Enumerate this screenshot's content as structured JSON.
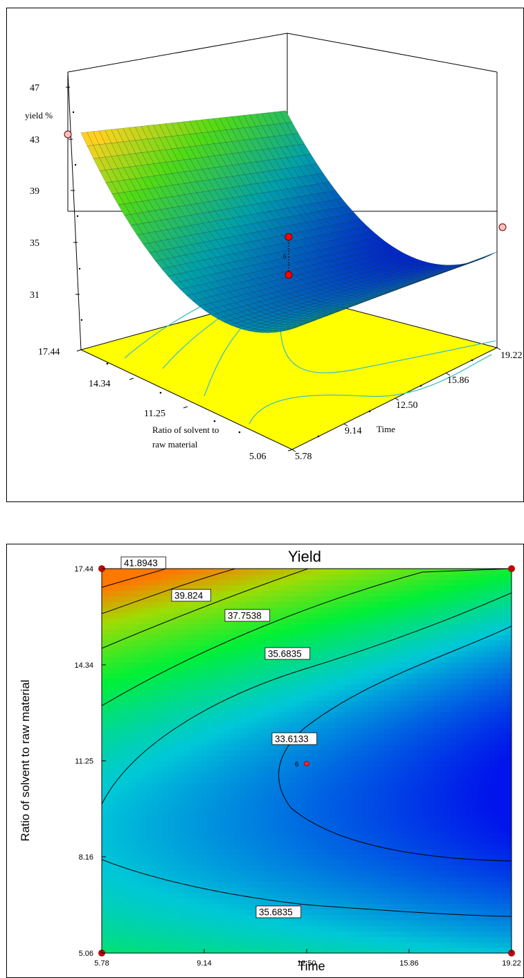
{
  "chart_data": [
    {
      "type": "surface",
      "z_label": "yield %",
      "x_axis_label": "Time",
      "y_axis_label": [
        "Ratio of solvent to",
        "raw material"
      ],
      "z_ticks": [
        "31",
        "35",
        "39",
        "43",
        "47"
      ],
      "x_ticks": [
        "5.78",
        "9.14",
        "12.50",
        "15.86",
        "19.22"
      ],
      "y_ticks": [
        "5.06",
        "11.25",
        "14.34",
        "17.44"
      ],
      "zlim": [
        31,
        47
      ],
      "xlim": [
        5.78,
        19.22
      ],
      "ylim": [
        5.06,
        17.44
      ],
      "design_points": [
        {
          "time": 5.78,
          "ratio": 17.44,
          "yield": 43.8
        },
        {
          "time": 19.22,
          "ratio": 17.44,
          "yield": 36.5
        },
        {
          "time": 12.5,
          "ratio": 11.25,
          "yield": 35.0
        },
        {
          "time": 12.5,
          "ratio": 11.25,
          "yield": 32.9
        }
      ],
      "center_label": "6",
      "colors": {
        "surface_low": "#0000c8",
        "surface_mid": "#20b0c8",
        "surface_high": "#ffd020",
        "floor": "#ffff00",
        "floor_contour": "#40c0c0",
        "point": "#ff0000"
      }
    },
    {
      "type": "contour",
      "title": "Yield",
      "x_axis_label": "Time",
      "y_axis_label": "Ratio of solvent to raw material",
      "x_ticks": [
        "5.78",
        "9.14",
        "12.50",
        "15.86",
        "19.22"
      ],
      "y_ticks": [
        "5.06",
        "8.16",
        "11.25",
        "14.34",
        "17.44"
      ],
      "xlim": [
        5.78,
        19.22
      ],
      "ylim": [
        5.06,
        17.44
      ],
      "contour_labels": [
        "41.8943",
        "39.824",
        "37.7538",
        "35.6835",
        "33.6133",
        "35.6835"
      ],
      "center_point": {
        "time": 12.5,
        "ratio": 11.25,
        "label": "6"
      },
      "corner_points": [
        {
          "time": 5.78,
          "ratio": 17.44
        },
        {
          "time": 19.22,
          "ratio": 17.44
        },
        {
          "time": 5.78,
          "ratio": 5.06
        },
        {
          "time": 19.22,
          "ratio": 5.06
        }
      ],
      "colors": {
        "low": "#0010e0",
        "mid": "#00e0e0",
        "high": "#ff8000",
        "point": "#cc0000"
      }
    }
  ]
}
